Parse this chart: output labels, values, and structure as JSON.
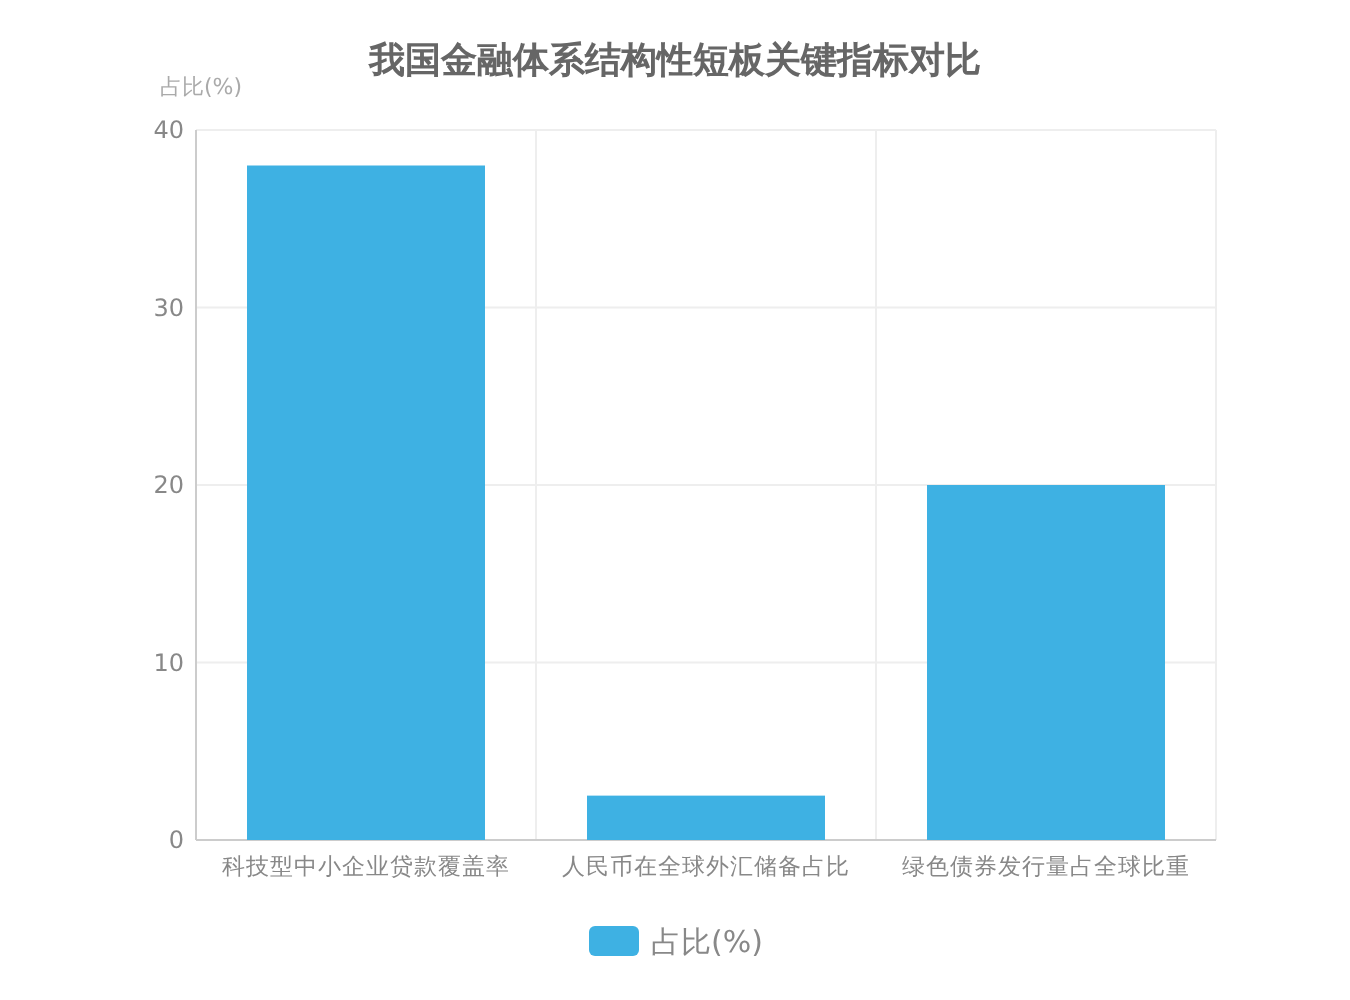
{
  "chart_data": {
    "type": "bar",
    "title": "我国金融体系结构性短板关键指标对比",
    "ylabel": "占比(%)",
    "categories": [
      "科技型中小企业贷款覆盖率",
      "人民币在全球外汇储备占比",
      "绿色债券发行量占全球比重"
    ],
    "series": [
      {
        "name": "占比(%)",
        "color": "#3eb1e3",
        "values": [
          38,
          2.5,
          20
        ]
      }
    ],
    "ylim": [
      0,
      40
    ],
    "yticks": [
      0,
      10,
      20,
      30,
      40
    ],
    "grid": true,
    "legend": "bottom"
  }
}
